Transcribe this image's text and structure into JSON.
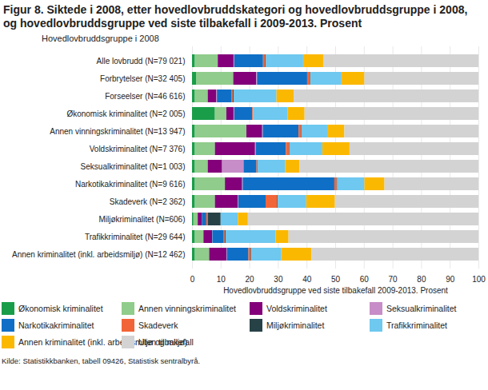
{
  "chart_data": {
    "type": "bar",
    "orientation": "horizontal",
    "stacked": true,
    "grid": true,
    "title": "Figur 8. Siktede i 2008, etter hovedlovbruddskategori og hovedlovbruddsgruppe i 2008, og hovedlovbruddsgruppe ved siste tilbakefall i 2009-2013. Prosent",
    "y_label": "Hovedlovbruddsgruppe i 2008",
    "x_label": "Hovedlovbruddsgruppe ved siste tilbakefall 2009-2013. Prosent",
    "source": "Kilde: Statistikkbanken, tabell 09426, Statistisk sentralbyrå.",
    "xlim": [
      0,
      100
    ],
    "xticks": [
      0,
      10,
      20,
      30,
      40,
      50,
      60,
      70,
      80,
      90,
      100
    ],
    "categories": [
      "Alle lovbrudd (N=79 021)",
      "Forbrytelser (N=32 405)",
      "Forseelser (N=46 616)",
      "Økonomisk kriminalitet (N=2 005)",
      "Annen vinningskriminalitet (N=13 947)",
      "Voldskriminalitet (N=7 376)",
      "Seksualkriminalitet (N=1 003)",
      "Narkotikakriminalitet (N=9 616)",
      "Skadeverk (N=2 362)",
      "Miljøkriminalitet (N=606)",
      "Trafikkriminalitet (N=29 644)",
      "Annen kriminalitet (inkl. arbeidsmiljø) (N=12 462)"
    ],
    "series": [
      {
        "name": "Økonomisk kriminalitet",
        "color": "#1a9d49",
        "values": [
          1,
          1.4,
          1,
          8,
          1,
          1,
          1,
          1,
          1,
          0.5,
          1,
          1
        ]
      },
      {
        "name": "Annen vinningskriminalitet",
        "color": "#90cc8b",
        "values": [
          8,
          13,
          4.5,
          4,
          18,
          7,
          4.5,
          10.5,
          7,
          1.5,
          3,
          5
        ]
      },
      {
        "name": "Voldskriminalitet",
        "color": "#83007a",
        "values": [
          5.5,
          8,
          3,
          2.5,
          5.5,
          14,
          5,
          6,
          8,
          1.5,
          3,
          6
        ]
      },
      {
        "name": "Seksualkriminalitet",
        "color": "#c78dc8",
        "values": [
          0.3,
          0.3,
          0.2,
          0.3,
          0.2,
          0.3,
          7.5,
          0.2,
          0.2,
          0,
          0.1,
          0.2
        ]
      },
      {
        "name": "Narkotikakriminalitet",
        "color": "#0f6fc6",
        "values": [
          10,
          17.5,
          5,
          6.2,
          12.5,
          10.5,
          4.5,
          32,
          9.5,
          1.5,
          4,
          7.5
        ]
      },
      {
        "name": "Skadeverk",
        "color": "#f26539",
        "values": [
          0.7,
          1,
          0.5,
          0.3,
          0.8,
          1,
          0.3,
          0.8,
          4,
          0.5,
          0.3,
          0.8
        ]
      },
      {
        "name": "Miljøkriminalitet",
        "color": "#274247",
        "values": [
          0.3,
          0.2,
          0.3,
          0,
          0.2,
          0.2,
          0.2,
          0.2,
          0.2,
          4.5,
          0.3,
          0.2
        ]
      },
      {
        "name": "Trafikkriminalitet",
        "color": "#6ec8ef",
        "values": [
          13,
          10.8,
          15,
          12,
          9,
          11.5,
          9.5,
          9.5,
          10,
          6,
          17.5,
          10.5
        ]
      },
      {
        "name": "Annen kriminalitet (inkl. arbeidsmiljø og miljø)",
        "color": "#fbb800",
        "values": [
          7,
          8,
          6,
          6,
          6,
          9.5,
          5,
          7,
          10,
          3.5,
          4.5,
          10.5
        ]
      },
      {
        "name": "Uten tilbakefall",
        "color": "#d3d3d3",
        "values": [
          54.2,
          39.8,
          64.5,
          60.7,
          46.8,
          45,
          62.5,
          32.8,
          50.1,
          80.5,
          66.3,
          58.3
        ]
      }
    ]
  }
}
